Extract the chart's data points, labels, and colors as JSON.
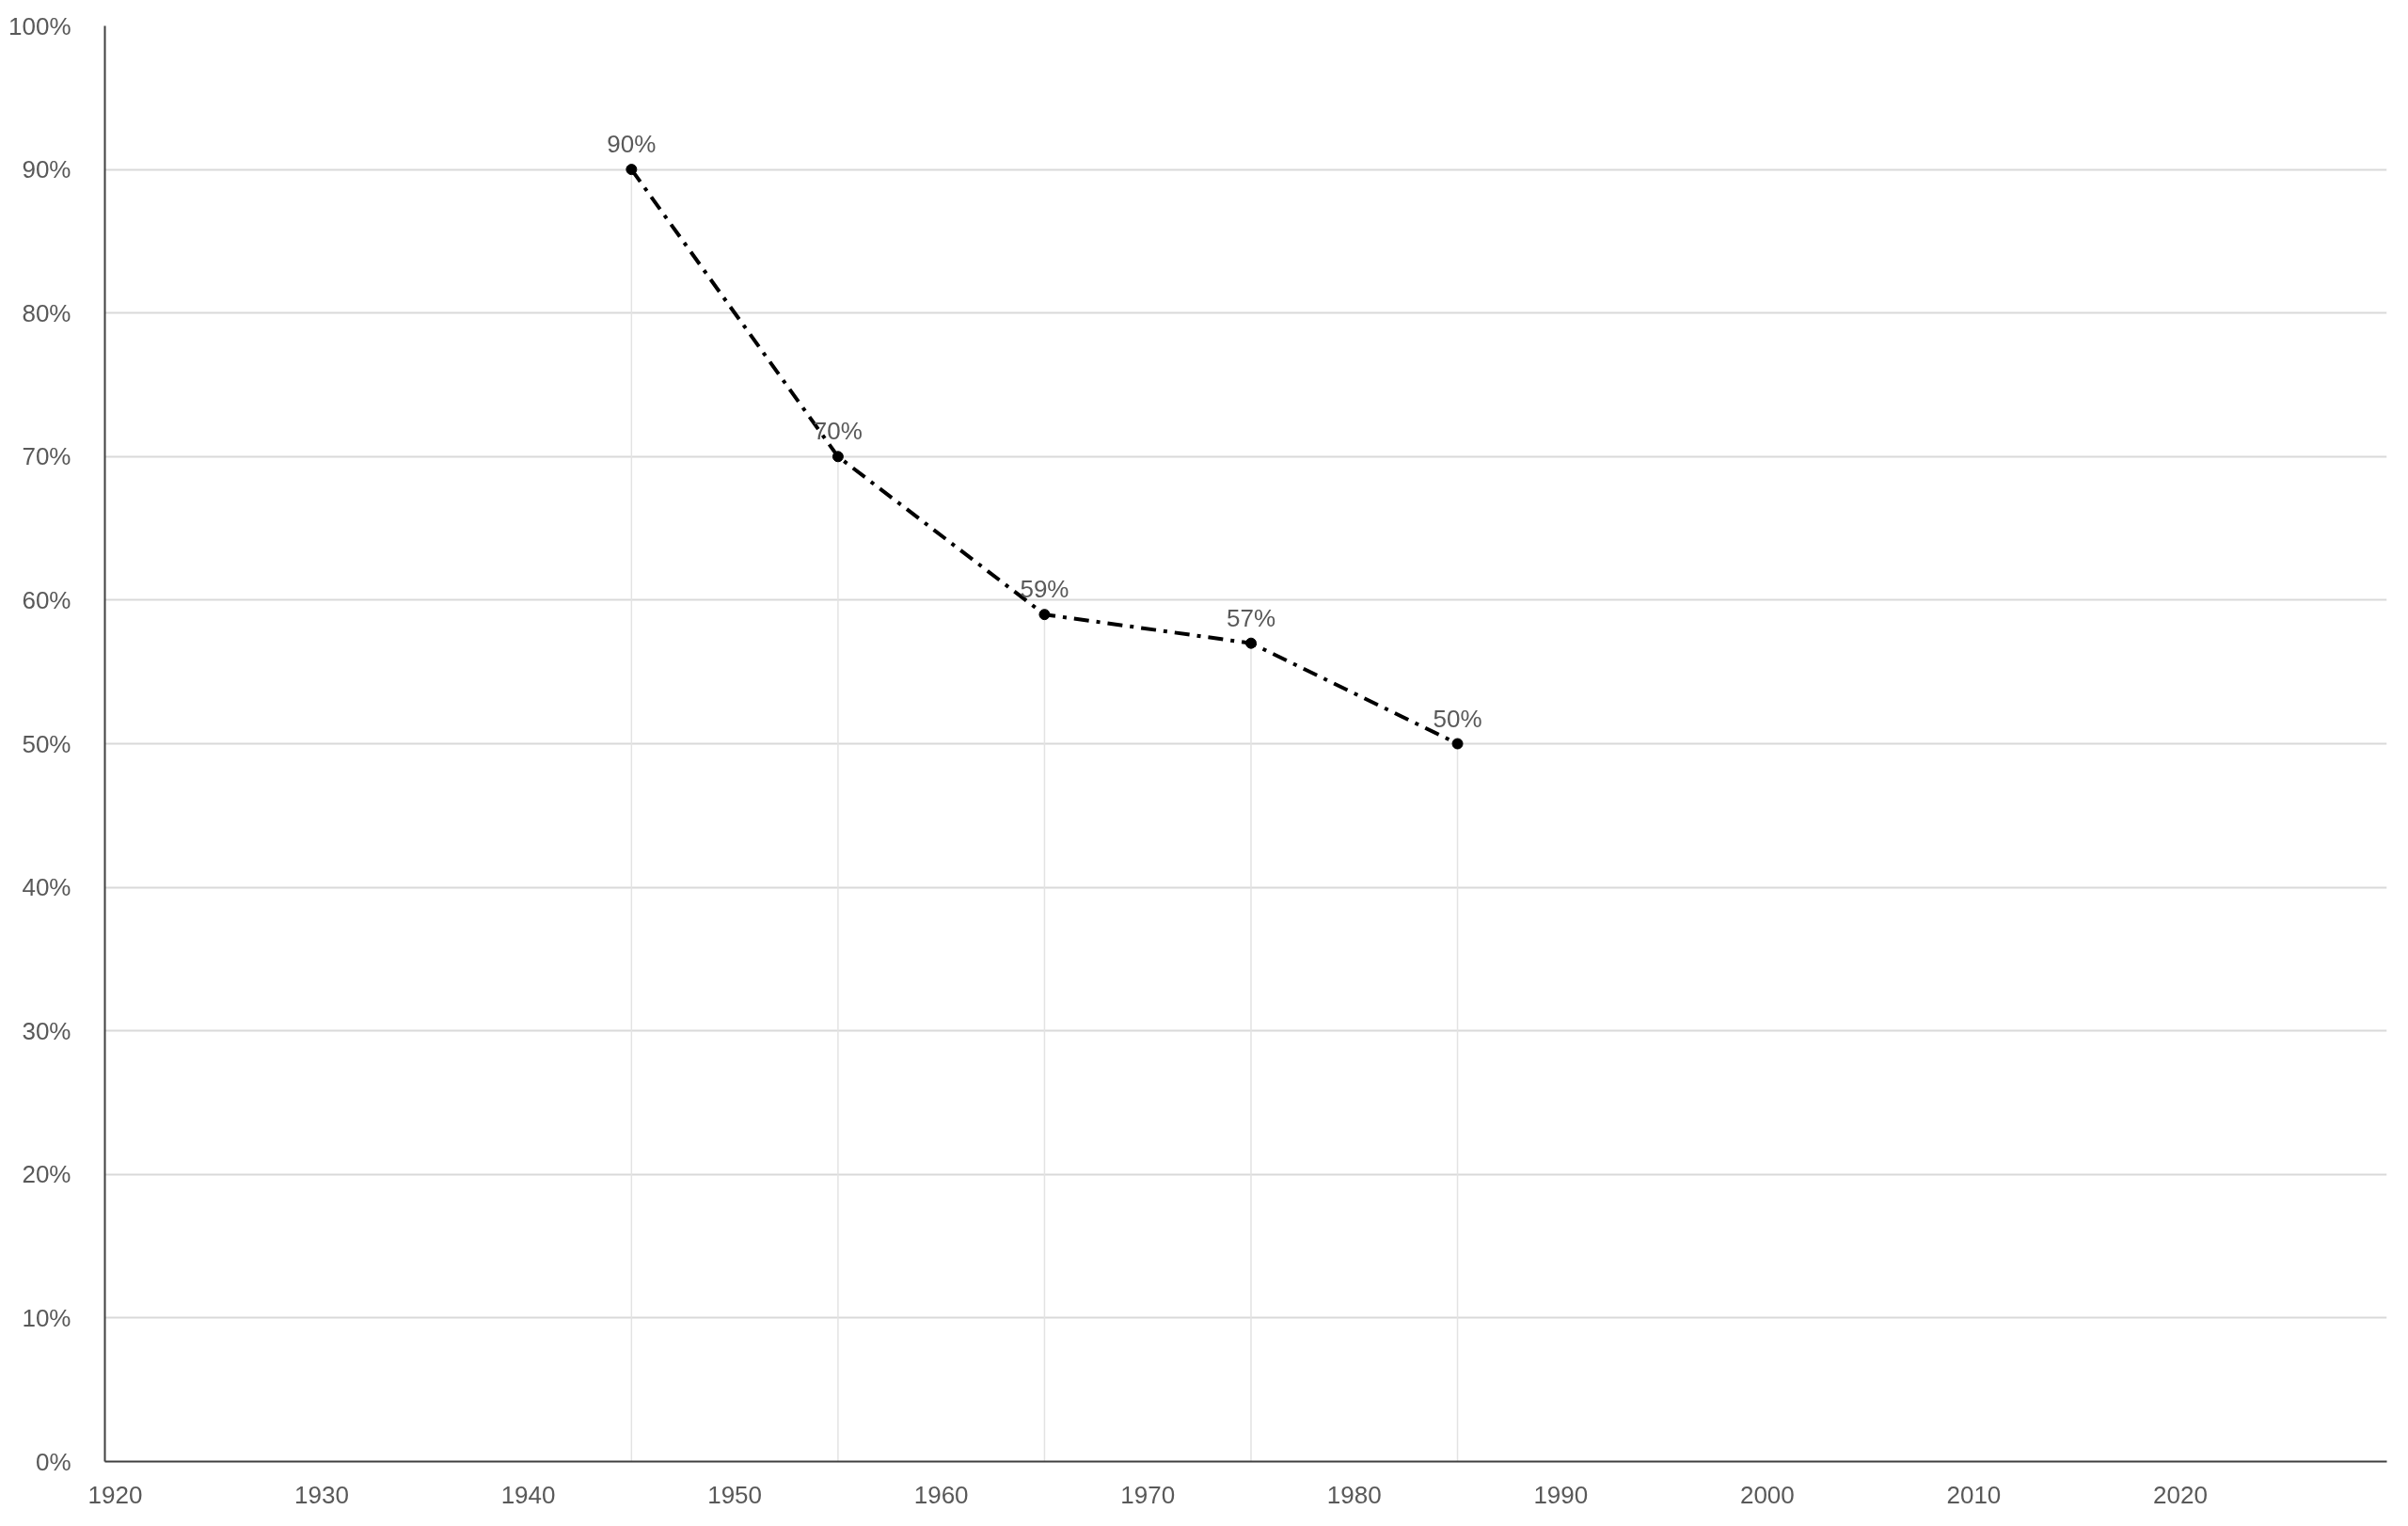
{
  "chart_data": {
    "type": "line",
    "x": [
      1945,
      1955,
      1965,
      1975,
      1985
    ],
    "series": [
      {
        "color": "#000000",
        "values": [
          90,
          70,
          59,
          57,
          50
        ],
        "value_labels": [
          "90%",
          "70%",
          "59%",
          "57%",
          "50%"
        ]
      }
    ],
    "xlim": [
      1919.5,
      2030
    ],
    "xticks": [
      1920,
      1930,
      1940,
      1950,
      1960,
      1970,
      1980,
      1990,
      2000,
      2010,
      2020
    ],
    "ylim": [
      0,
      100
    ],
    "yticks": [
      {
        "value": 0,
        "label": "0%"
      },
      {
        "value": 10,
        "label": "10%"
      },
      {
        "value": 20,
        "label": "20%"
      },
      {
        "value": 30,
        "label": "30%"
      },
      {
        "value": 40,
        "label": "40%"
      },
      {
        "value": 50,
        "label": "50%"
      },
      {
        "value": 60,
        "label": "60%"
      },
      {
        "value": 70,
        "label": "70%"
      },
      {
        "value": 80,
        "label": "80%"
      },
      {
        "value": 90,
        "label": "90%"
      },
      {
        "value": 100,
        "label": "100%"
      }
    ],
    "ref_lines": [
      {
        "axis": "x",
        "value": 1945,
        "color": "#e3e3e3"
      },
      {
        "axis": "x",
        "value": 1955,
        "color": "#e3e3e3"
      },
      {
        "axis": "x",
        "value": 1965,
        "color": "#e3e3e3"
      },
      {
        "axis": "x",
        "value": 1975,
        "color": "#e3e3e3"
      },
      {
        "axis": "x",
        "value": 1985,
        "color": "#e3e3e3"
      }
    ],
    "grid": "y",
    "marker": "circle",
    "line_style": "dashdot"
  }
}
